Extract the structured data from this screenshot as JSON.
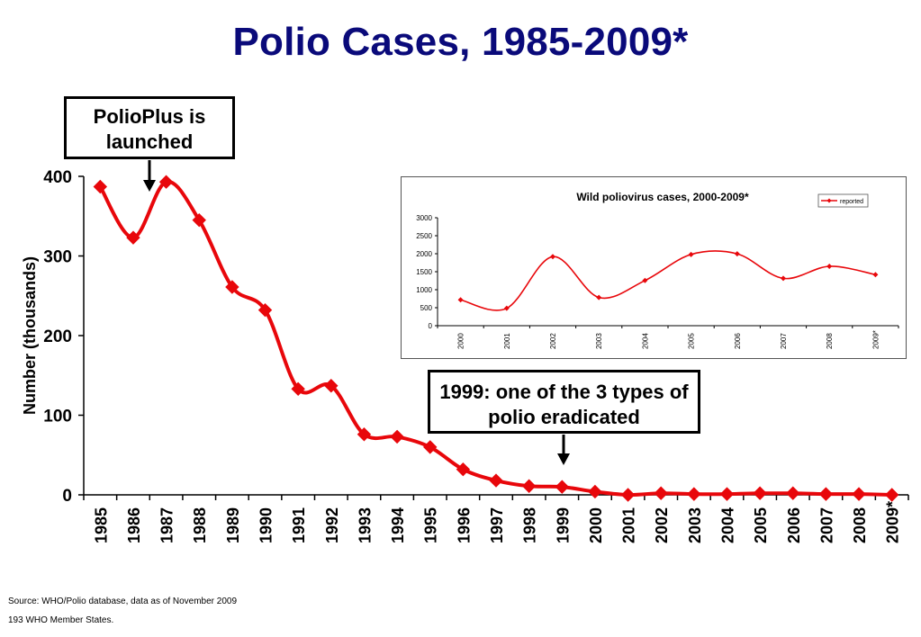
{
  "title": "Polio Cases, 1985-2009*",
  "callouts": {
    "launch": "PolioPlus is launched",
    "eradicated": "1999: one of the 3 types of polio eradicated"
  },
  "footnotes": {
    "source": "Source: WHO/Polio database, data as of November 2009",
    "members": "193 WHO Member States."
  },
  "colors": {
    "title": "#0a0a7a",
    "series": "#e8070b",
    "axis": "#000000"
  },
  "chart_data": [
    {
      "type": "line",
      "title": "Polio Cases, 1985-2009*",
      "xlabel": "",
      "ylabel": "Number (thousands)",
      "categories": [
        "1985",
        "1986",
        "1987",
        "1988",
        "1989",
        "1990",
        "1991",
        "1992",
        "1993",
        "1994",
        "1995",
        "1996",
        "1997",
        "1998",
        "1999",
        "2000",
        "2001",
        "2002",
        "2003",
        "2004",
        "2005",
        "2006",
        "2007",
        "2008",
        "2009*"
      ],
      "series": [
        {
          "values": [
            387,
            323,
            393,
            345,
            261,
            232,
            133,
            137,
            76,
            73,
            60,
            32,
            18,
            11,
            10,
            4,
            0,
            2,
            1,
            1,
            2,
            2,
            1,
            1,
            0
          ]
        }
      ],
      "yticks": [
        "0",
        "100",
        "200",
        "300",
        "400"
      ],
      "ylim": [
        0,
        400
      ],
      "grid": false,
      "markers": "diamond"
    },
    {
      "type": "line",
      "title": "Wild poliovirus cases, 2000-2009*",
      "xlabel": "",
      "ylabel": "",
      "categories": [
        "2000",
        "2001",
        "2002",
        "2003",
        "2004",
        "2005",
        "2006",
        "2007",
        "2008",
        "2009*"
      ],
      "series": [
        {
          "name": "reported",
          "values": [
            719,
            483,
            1918,
            784,
            1255,
            1979,
            1997,
            1315,
            1651,
            1420
          ]
        }
      ],
      "yticks": [
        "0",
        "500",
        "1000",
        "1500",
        "2000",
        "2500",
        "3000"
      ],
      "ylim": [
        0,
        3000
      ],
      "legend": "top-right",
      "grid": false,
      "markers": "diamond"
    }
  ]
}
